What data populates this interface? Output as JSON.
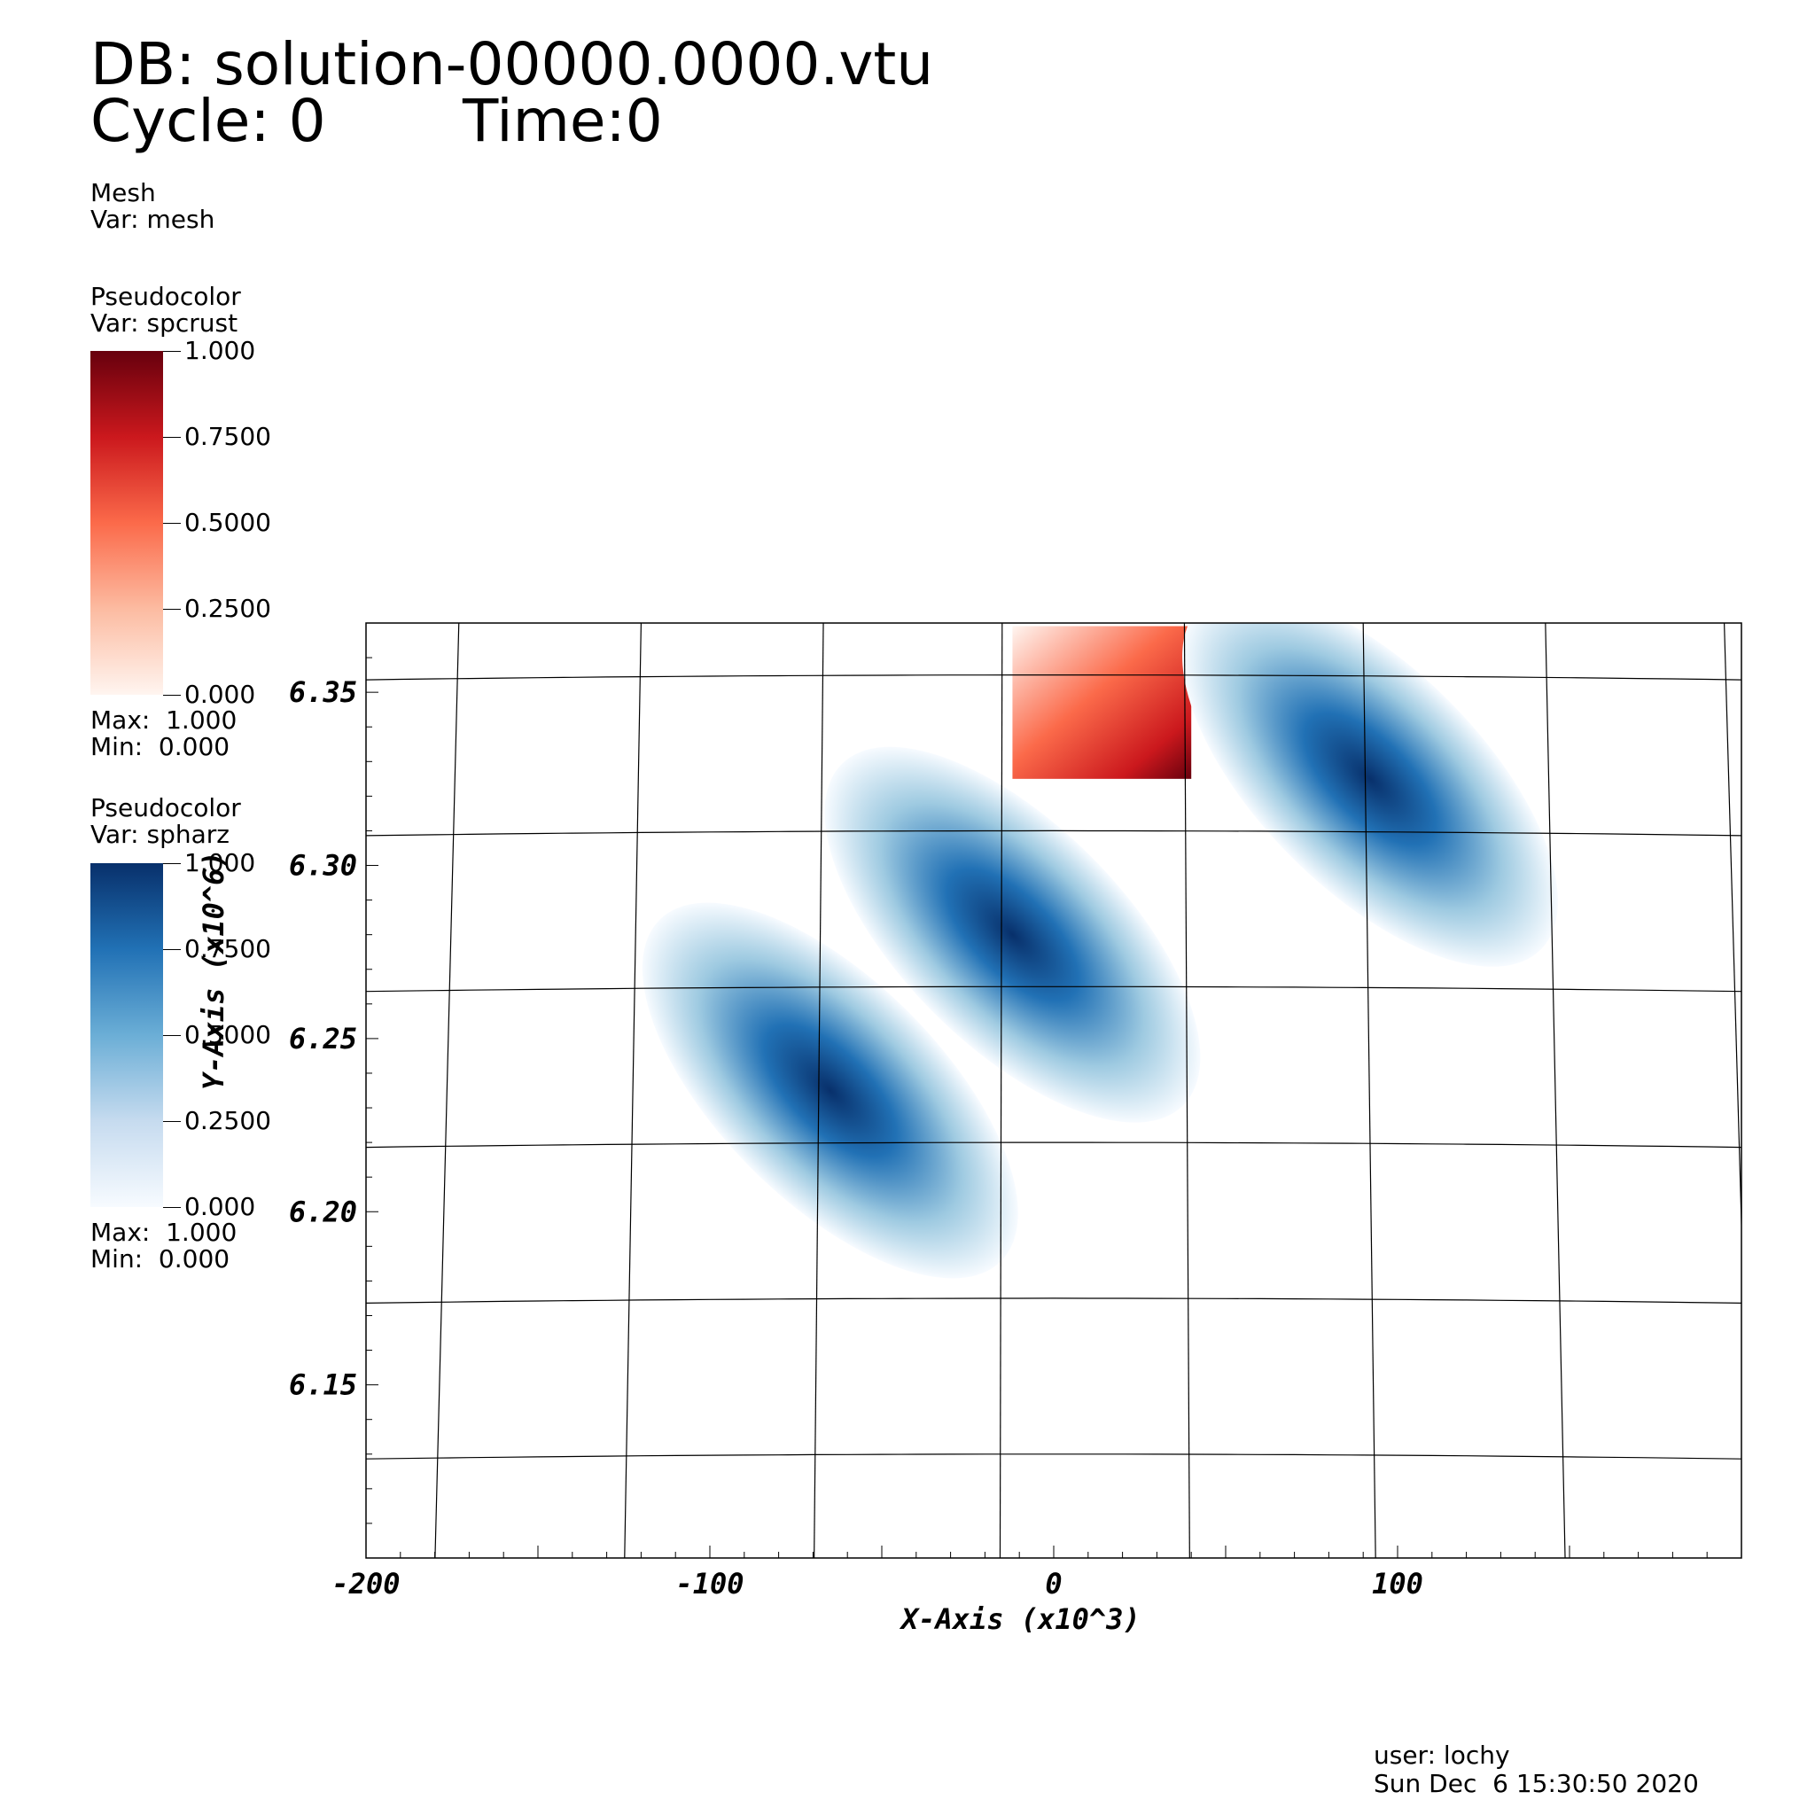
{
  "header": {
    "db_line": "DB: solution-00000.0000.vtu",
    "cycle_line": "Cycle: 0",
    "time_line": "Time:0"
  },
  "mesh_legend": {
    "title": "Mesh",
    "var": "Var: mesh"
  },
  "legend_spcrust": {
    "title": "Pseudocolor",
    "var": "Var: spcrust",
    "ticks": [
      "1.000",
      "0.7500",
      "0.5000",
      "0.2500",
      "0.000"
    ],
    "max_text": "Max:  1.000",
    "min_text": "Min:  0.000",
    "colors": [
      "#67000d",
      "#cb181d",
      "#fb6a4a",
      "#fcbba1",
      "#fff5f0"
    ]
  },
  "legend_spharz": {
    "title": "Pseudocolor",
    "var": "Var: spharz",
    "ticks": [
      "1.000",
      "0.7500",
      "0.5000",
      "0.2500",
      "0.000"
    ],
    "max_text": "Max:  1.000",
    "min_text": "Min:  0.000",
    "colors": [
      "#08306b",
      "#2171b5",
      "#6baed6",
      "#c6dbef",
      "#f7fbff"
    ]
  },
  "footer": {
    "user": "user: lochy",
    "date": "Sun Dec  6 15:30:50 2020"
  },
  "chart_data": {
    "type": "heatmap",
    "xlabel": "X-Axis (x10^3)",
    "ylabel": "Y-Axis (x10^6)",
    "xlim": [
      -200,
      200
    ],
    "ylim": [
      6.1,
      6.37
    ],
    "xticks": [
      "-200",
      "-100",
      "0",
      "100"
    ],
    "yticks": [
      "6.15",
      "6.20",
      "6.25",
      "6.30",
      "6.35"
    ],
    "xtick_values": [
      -200,
      -100,
      0,
      100
    ],
    "ytick_values": [
      6.15,
      6.2,
      6.25,
      6.3,
      6.35
    ],
    "grid": "curvilinear mesh",
    "fields": [
      {
        "name": "spcrust",
        "peak": {
          "x": 40,
          "y": 6.325
        },
        "value_max": 1.0
      },
      {
        "name": "spharz",
        "peak": {
          "x": 92,
          "y": 6.325
        },
        "value_max": 1.0
      },
      {
        "name": "spharz",
        "peak": {
          "x": -12,
          "y": 6.28
        },
        "value_max": 1.0
      },
      {
        "name": "spharz",
        "peak": {
          "x": -65,
          "y": 6.235
        },
        "value_max": 1.0
      }
    ]
  }
}
